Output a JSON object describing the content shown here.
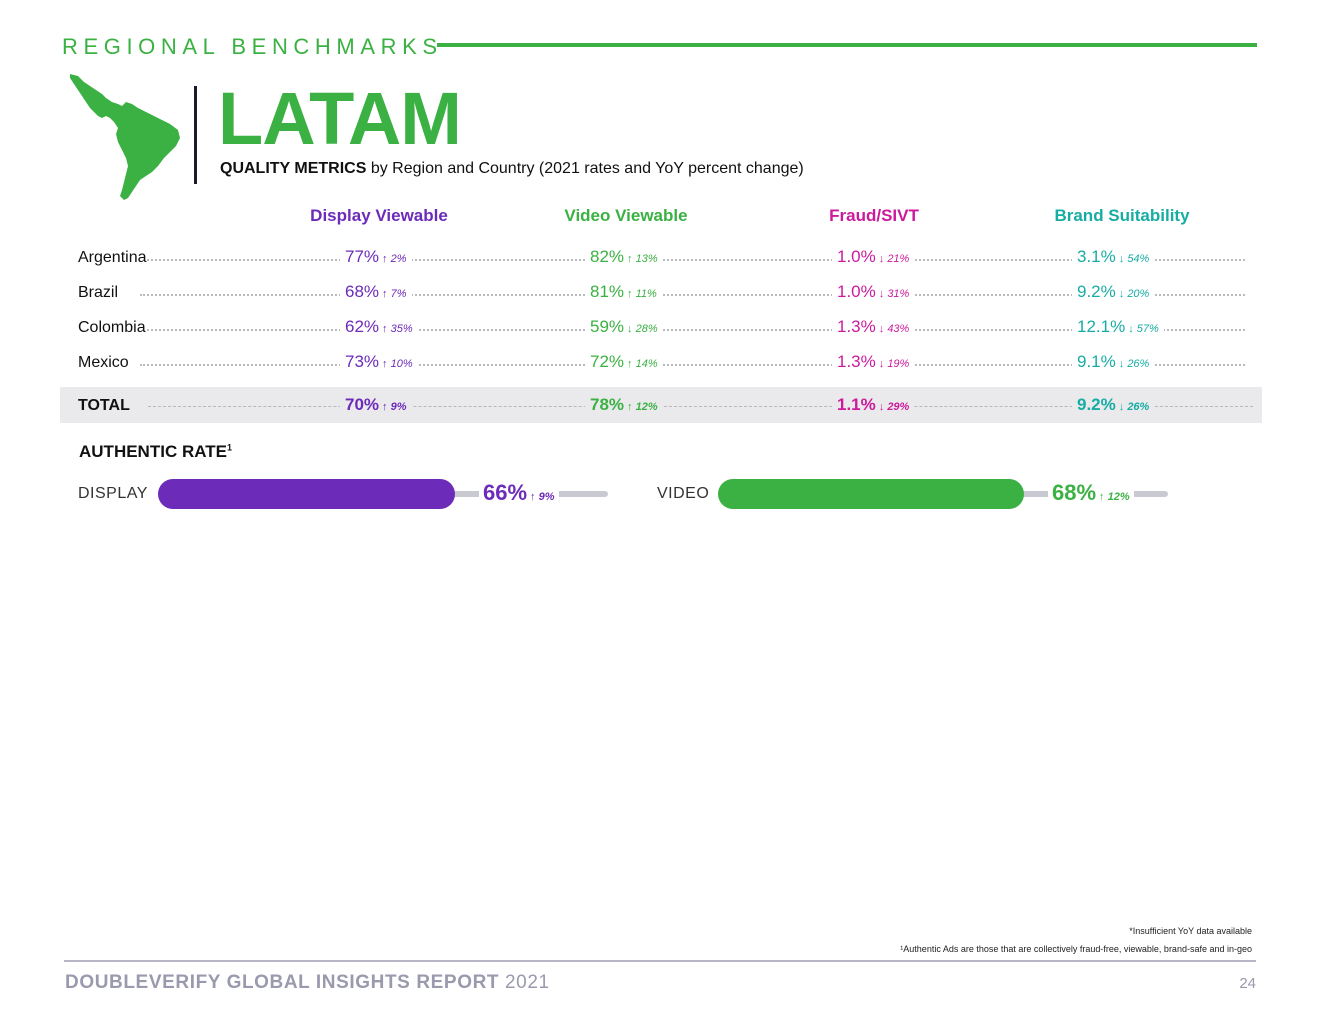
{
  "header": {
    "section_title": "REGIONAL BENCHMARKS",
    "region": "LATAM",
    "subtitle_bold": "QUALITY METRICS",
    "subtitle_rest": " by Region and Country (2021 rates and YoY percent change)",
    "map_icon": "south-america-map-icon"
  },
  "colors": {
    "display": "#6c2bb8",
    "video": "#3bb143",
    "fraud": "#cc1a9c",
    "brand": "#17ada4",
    "accent": "#3bb143"
  },
  "columns": {
    "display": "Display Viewable",
    "video": "Video Viewable",
    "fraud": "Fraud/SIVT",
    "brand": "Brand Suitability"
  },
  "rows": [
    {
      "country": "Argentina",
      "display": {
        "value": "77%",
        "dir": "↑",
        "change": "2%"
      },
      "video": {
        "value": "82%",
        "dir": "↑",
        "change": "13%"
      },
      "fraud": {
        "value": "1.0%",
        "dir": "↓",
        "change": "21%"
      },
      "brand": {
        "value": "3.1%",
        "dir": "↓",
        "change": "54%"
      }
    },
    {
      "country": "Brazil",
      "display": {
        "value": "68%",
        "dir": "↑",
        "change": "7%"
      },
      "video": {
        "value": "81%",
        "dir": "↑",
        "change": "11%"
      },
      "fraud": {
        "value": "1.0%",
        "dir": "↓",
        "change": "31%"
      },
      "brand": {
        "value": "9.2%",
        "dir": "↓",
        "change": "20%"
      }
    },
    {
      "country": "Colombia",
      "display": {
        "value": "62%",
        "dir": "↑",
        "change": "35%"
      },
      "video": {
        "value": "59%",
        "dir": "↓",
        "change": "28%"
      },
      "fraud": {
        "value": "1.3%",
        "dir": "↓",
        "change": "43%"
      },
      "brand": {
        "value": "12.1%",
        "dir": "↓",
        "change": "57%"
      }
    },
    {
      "country": "Mexico",
      "display": {
        "value": "73%",
        "dir": "↑",
        "change": "10%"
      },
      "video": {
        "value": "72%",
        "dir": "↑",
        "change": "14%"
      },
      "fraud": {
        "value": "1.3%",
        "dir": "↓",
        "change": "19%"
      },
      "brand": {
        "value": "9.1%",
        "dir": "↓",
        "change": "26%"
      }
    }
  ],
  "total": {
    "country": "TOTAL",
    "display": {
      "value": "70%",
      "dir": "↑",
      "change": "9%"
    },
    "video": {
      "value": "78%",
      "dir": "↑",
      "change": "12%"
    },
    "fraud": {
      "value": "1.1%",
      "dir": "↓",
      "change": "29%"
    },
    "brand": {
      "value": "9.2%",
      "dir": "↓",
      "change": "26%"
    }
  },
  "authentic": {
    "title": "AUTHENTIC RATE",
    "footnote_mark": "1",
    "display": {
      "label": "DISPLAY",
      "value": "66%",
      "dir": "↑",
      "change": "9%",
      "rate": 0.66
    },
    "video": {
      "label": "VIDEO",
      "value": "68%",
      "dir": "↑",
      "change": "12%",
      "rate": 0.68
    }
  },
  "footnotes": {
    "insufficient": "*Insufficient YoY data available",
    "authentic_def": "¹Authentic Ads are those that are collectively fraud-free, viewable, brand-safe and in-geo"
  },
  "footer": {
    "report": "DOUBLEVERIFY GLOBAL INSIGHTS REPORT",
    "year": "2021",
    "page": "24"
  }
}
